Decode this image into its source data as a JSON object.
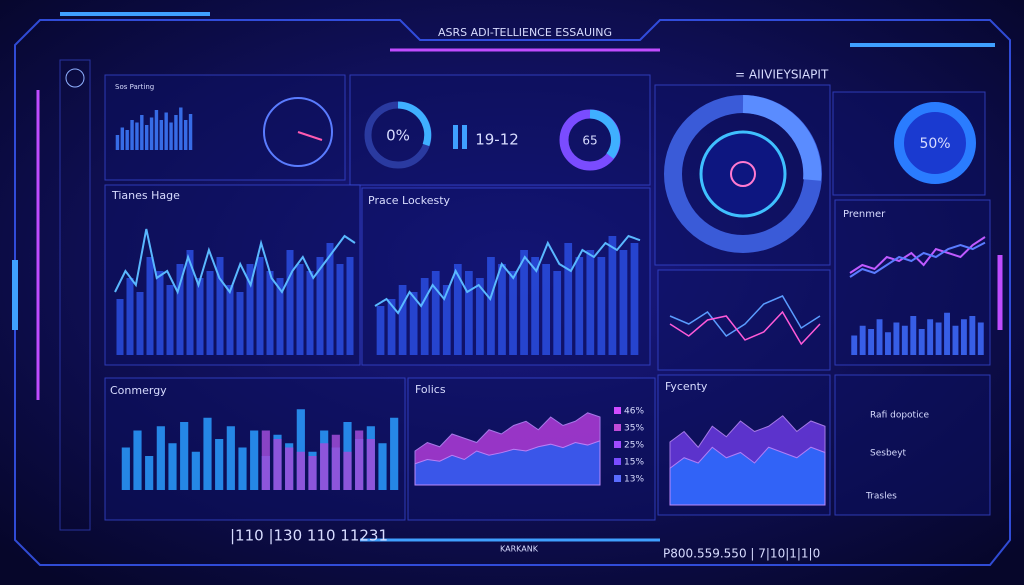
{
  "header": {
    "title": "ASRS ADI-TELLIENCE ESSAUING",
    "subtitle": "= AIIVIEYSIAPIT"
  },
  "panels": {
    "mini": {
      "title": "Sos Parting",
      "bars": [
        30,
        45,
        40,
        60,
        55,
        70,
        50,
        65,
        80,
        60,
        75,
        55,
        70,
        85,
        60,
        72
      ]
    },
    "timeline": {
      "title": "Tianes Hage",
      "bars": [
        40,
        55,
        45,
        70,
        60,
        50,
        65,
        75,
        55,
        60,
        70,
        50,
        45,
        65,
        70,
        60,
        55,
        75,
        65,
        60,
        70,
        80,
        65,
        70
      ],
      "line": [
        45,
        60,
        50,
        90,
        55,
        60,
        45,
        70,
        50,
        75,
        55,
        45,
        65,
        50,
        80,
        55,
        45,
        60,
        70,
        55,
        65,
        75,
        85,
        80
      ]
    },
    "pace": {
      "title": "Prace Lockesty",
      "bars": [
        35,
        40,
        50,
        45,
        55,
        60,
        50,
        65,
        60,
        55,
        70,
        65,
        60,
        75,
        70,
        65,
        60,
        80,
        70,
        75,
        70,
        85,
        75,
        80
      ],
      "line": [
        35,
        40,
        30,
        45,
        35,
        50,
        40,
        60,
        45,
        50,
        40,
        65,
        55,
        70,
        60,
        80,
        65,
        60,
        75,
        70,
        80,
        75,
        85,
        82
      ]
    },
    "cross": {
      "line1": [
        55,
        45,
        60,
        30,
        45,
        70,
        80,
        40,
        55
      ],
      "line2": [
        45,
        30,
        50,
        55,
        25,
        35,
        60,
        20,
        45
      ]
    },
    "premier": {
      "title": "Prenmer",
      "line1": [
        40,
        50,
        45,
        60,
        55,
        65,
        50,
        70,
        65,
        60,
        75,
        85
      ],
      "line2": [
        35,
        45,
        40,
        50,
        60,
        55,
        65,
        60,
        70,
        75,
        70,
        78
      ],
      "bars": [
        30,
        45,
        40,
        55,
        35,
        50,
        45,
        60,
        40,
        55,
        50,
        65,
        45,
        55,
        60,
        50
      ]
    },
    "commergy": {
      "title": "Conmergy",
      "bars": [
        50,
        70,
        40,
        75,
        55,
        80,
        45,
        85,
        60,
        75,
        50,
        70,
        40,
        65,
        55,
        95,
        45,
        70,
        50,
        80,
        60,
        75,
        55,
        85
      ],
      "bars2": [
        0,
        0,
        0,
        0,
        0,
        0,
        0,
        0,
        0,
        0,
        0,
        0,
        70,
        60,
        50,
        45,
        40,
        55,
        65,
        45,
        70,
        60,
        0,
        0
      ]
    },
    "folics": {
      "title": "Folics",
      "area1": [
        40,
        50,
        45,
        60,
        55,
        50,
        65,
        60,
        70,
        75,
        65,
        80,
        70,
        75,
        85,
        80
      ],
      "area2": [
        25,
        30,
        28,
        35,
        30,
        40,
        35,
        38,
        42,
        40,
        45,
        48,
        44,
        50,
        47,
        52
      ],
      "legend": [
        "46%",
        "35%",
        "25%",
        "15%",
        "13%"
      ]
    },
    "fycenty": {
      "title": "Fycenty",
      "area1": [
        60,
        70,
        55,
        75,
        65,
        80,
        70,
        75,
        85,
        70,
        80,
        75
      ],
      "area2": [
        35,
        45,
        40,
        55,
        45,
        50,
        40,
        55,
        50,
        45,
        55,
        50
      ]
    }
  },
  "gauges": [
    {
      "label": "0%"
    },
    {
      "label": "19-12"
    },
    {
      "label": "65"
    },
    {
      "label": "50%"
    }
  ],
  "list": [
    "Rafi dopotice",
    "Sesbeyt",
    "Trasles"
  ],
  "footer": [
    "|110 |130 110 11231",
    "KARKANK",
    "P800.559.550 | 7|10|1|1|0"
  ]
}
